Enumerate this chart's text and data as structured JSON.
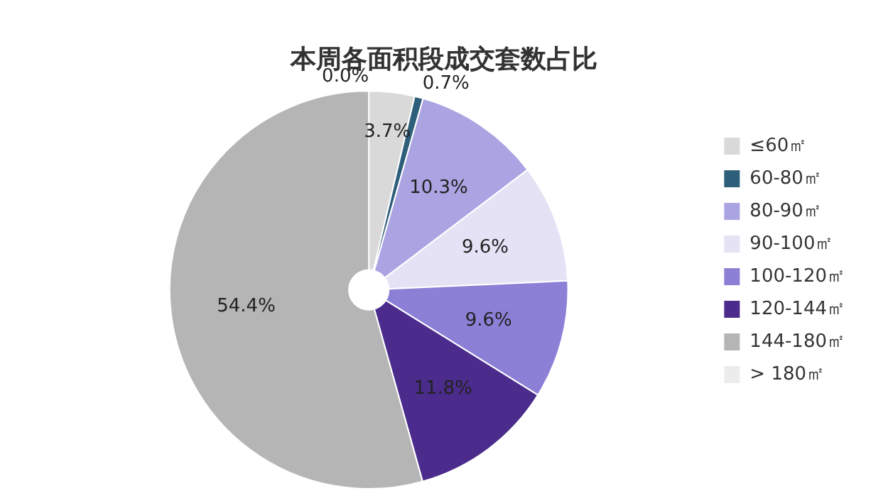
{
  "chart_data": {
    "type": "pie",
    "title": "本周各面积段成交套数占比",
    "categories": [
      "≤60㎡",
      "60-80㎡",
      "80-90㎡",
      "90-100㎡",
      "100-120㎡",
      "120-144㎡",
      "144-180㎡",
      "> 180㎡"
    ],
    "values": [
      3.7,
      0.7,
      10.3,
      9.6,
      9.6,
      11.8,
      54.4,
      0.0
    ],
    "value_labels": [
      "3.7%",
      "0.7%",
      "10.3%",
      "9.6%",
      "9.6%",
      "11.8%",
      "54.4%",
      "0.0%"
    ],
    "colors": [
      "#d9d9d9",
      "#2e5f7a",
      "#aaa4e2",
      "#e4e2f4",
      "#8b7fd6",
      "#4b2c8c",
      "#b5b5b5",
      "#ececec"
    ],
    "legend": "right"
  }
}
